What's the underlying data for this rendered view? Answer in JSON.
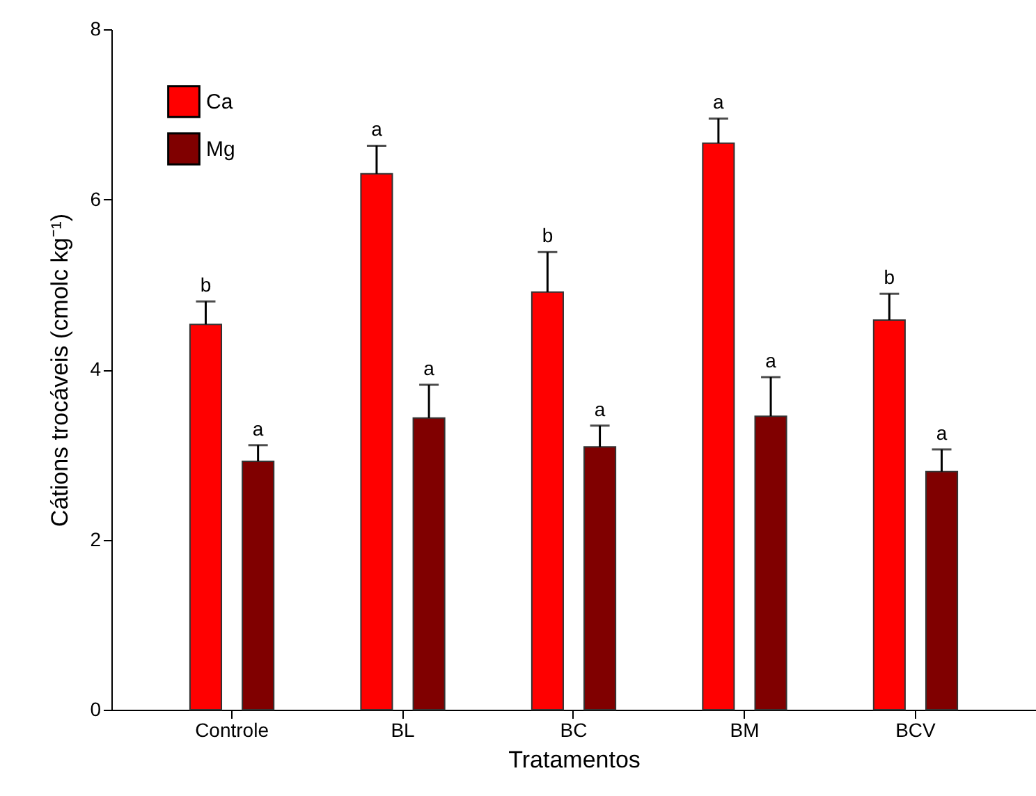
{
  "chart_data": {
    "type": "bar",
    "xlabel": "Tratamentos",
    "ylabel": "Cátions trocáveis (cmolc kg⁻¹)",
    "categories": [
      "Controle",
      "BL",
      "BC",
      "BM",
      "BCV"
    ],
    "ylim": [
      0,
      8
    ],
    "yticks": [
      0,
      2,
      4,
      6,
      8
    ],
    "legend": "top left",
    "grid": false,
    "series": [
      {
        "name": "Ca",
        "color": "#ff0000",
        "values": [
          4.53,
          6.3,
          4.91,
          6.66,
          4.58
        ],
        "errors": [
          [
            4.53,
            4.8
          ],
          [
            6.3,
            6.63
          ],
          [
            4.91,
            5.38
          ],
          [
            6.66,
            6.95
          ],
          [
            4.58,
            4.89
          ]
        ],
        "value_labels": [
          "b",
          "a",
          "b",
          "a",
          "b"
        ]
      },
      {
        "name": "Mg",
        "color": "#800000",
        "values": [
          2.92,
          3.43,
          3.09,
          3.45,
          2.8
        ],
        "errors": [
          [
            2.92,
            3.11
          ],
          [
            3.43,
            3.82
          ],
          [
            3.09,
            3.34
          ],
          [
            3.45,
            3.91
          ],
          [
            2.8,
            3.06
          ]
        ],
        "value_labels": [
          "a",
          "a",
          "a",
          "a",
          "a"
        ]
      }
    ]
  }
}
